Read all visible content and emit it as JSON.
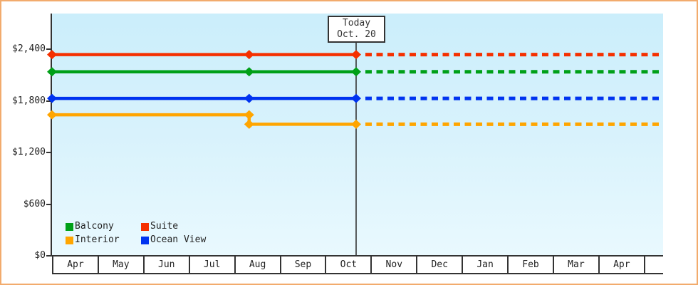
{
  "frame": {
    "border_color": "#f2ab6d",
    "axis_color": "#333333",
    "text_color": "#222222"
  },
  "today_flag": {
    "line1": "Today",
    "line2": "Oct. 20"
  },
  "legend": {
    "items": [
      {
        "label": "Balcony",
        "color": "#00a018"
      },
      {
        "label": "Suite",
        "color": "#f53000"
      },
      {
        "label": "Interior",
        "color": "#ffa500"
      },
      {
        "label": "Ocean View",
        "color": "#0033f0"
      }
    ]
  },
  "chart_data": {
    "type": "line",
    "title": "",
    "x_unit": "month_index_from_first_april",
    "x_categories": [
      "Apr",
      "May",
      "Jun",
      "Jul",
      "Aug",
      "Sep",
      "Oct",
      "Nov",
      "Dec",
      "Jan",
      "Feb",
      "Mar",
      "Apr"
    ],
    "y_tick_labels": [
      "$0",
      "$600",
      "$1,200",
      "$1,800",
      "$2,400"
    ],
    "y_tick_values": [
      0,
      600,
      1200,
      1800,
      2400
    ],
    "ylim": [
      0,
      2820
    ],
    "grid": false,
    "legend_position": "bottom-left",
    "today": {
      "label": "Today",
      "date": "Oct. 20",
      "x": 6.68
    },
    "x_end": 13.42,
    "marker": "diamond",
    "series": [
      {
        "name": "Suite",
        "color": "#f53000",
        "points": [
          [
            0,
            2340
          ],
          [
            4.33,
            2340
          ],
          [
            6.68,
            2340
          ]
        ],
        "forecast_value": 2340
      },
      {
        "name": "Balcony",
        "color": "#00a018",
        "points": [
          [
            0,
            2140
          ],
          [
            4.33,
            2140
          ],
          [
            6.68,
            2140
          ]
        ],
        "forecast_value": 2140
      },
      {
        "name": "Ocean View",
        "color": "#0033f0",
        "points": [
          [
            0,
            1830
          ],
          [
            4.33,
            1830
          ],
          [
            6.68,
            1830
          ]
        ],
        "forecast_value": 1830
      },
      {
        "name": "Interior",
        "color": "#ffa500",
        "points": [
          [
            0,
            1640
          ],
          [
            4.33,
            1640
          ],
          [
            4.33,
            1530
          ],
          [
            6.68,
            1530
          ]
        ],
        "forecast_value": 1530
      }
    ]
  }
}
